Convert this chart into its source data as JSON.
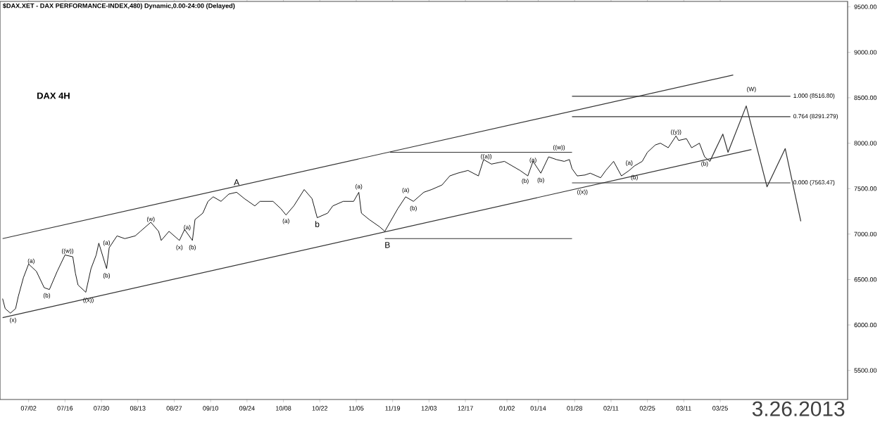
{
  "chart_data": {
    "type": "line",
    "title": "$DAX.XET - DAX PERFORMANCE-INDEX,480) Dynamic,0.00-24:00 (Delayed)",
    "xlim": [
      "2012-06-21",
      "2013-05-13"
    ],
    "xticks": [
      {
        "value": "2012-07-02",
        "label": "07/02"
      },
      {
        "value": "2012-07-16",
        "label": "07/16"
      },
      {
        "value": "2012-07-30",
        "label": "07/30"
      },
      {
        "value": "2012-08-13",
        "label": "08/13"
      },
      {
        "value": "2012-08-27",
        "label": "08/27"
      },
      {
        "value": "2012-09-10",
        "label": "09/10"
      },
      {
        "value": "2012-09-24",
        "label": "09/24"
      },
      {
        "value": "2012-10-08",
        "label": "10/08"
      },
      {
        "value": "2012-10-22",
        "label": "10/22"
      },
      {
        "value": "2012-11-05",
        "label": "11/05"
      },
      {
        "value": "2012-11-19",
        "label": "11/19"
      },
      {
        "value": "2012-12-03",
        "label": "12/03"
      },
      {
        "value": "2012-12-17",
        "label": "12/17"
      },
      {
        "value": "2013-01-02",
        "label": "01/02"
      },
      {
        "value": "2013-01-14",
        "label": "01/14"
      },
      {
        "value": "2013-01-28",
        "label": "01/28"
      },
      {
        "value": "2013-02-11",
        "label": "02/11"
      },
      {
        "value": "2013-02-25",
        "label": "02/25"
      },
      {
        "value": "2013-03-11",
        "label": "03/11"
      },
      {
        "value": "2013-03-25",
        "label": "03/25"
      }
    ],
    "ylim": [
      5180,
      9560
    ],
    "yticks": [
      {
        "value": 5500,
        "label": "5500.00"
      },
      {
        "value": 6000,
        "label": "6000.00"
      },
      {
        "value": 6500,
        "label": "6500.00"
      },
      {
        "value": 7000,
        "label": "7000.00"
      },
      {
        "value": 7500,
        "label": "7500.00"
      },
      {
        "value": 8000,
        "label": "8000.00"
      },
      {
        "value": 8500,
        "label": "8500.00"
      },
      {
        "value": 9000,
        "label": "9000.00"
      },
      {
        "value": 9500,
        "label": "9500.00"
      }
    ],
    "series": [
      {
        "color": "#000000",
        "x": [
          "2012-06-22",
          "2012-06-23",
          "2012-06-25",
          "2012-06-27",
          "2012-06-28",
          "2012-06-30",
          "2012-07-02",
          "2012-07-05",
          "2012-07-08",
          "2012-07-10",
          "2012-07-13",
          "2012-07-16",
          "2012-07-19",
          "2012-07-20",
          "2012-07-21",
          "2012-07-24",
          "2012-07-26",
          "2012-07-28",
          "2012-07-29",
          "2012-08-01",
          "2012-08-02",
          "2012-08-05",
          "2012-08-08",
          "2012-08-12",
          "2012-08-14",
          "2012-08-18",
          "2012-08-21",
          "2012-08-22",
          "2012-08-25",
          "2012-08-29",
          "2012-08-31",
          "2012-09-03",
          "2012-09-04",
          "2012-09-07",
          "2012-09-09",
          "2012-09-11",
          "2012-09-14",
          "2012-09-17",
          "2012-09-20",
          "2012-09-23",
          "2012-09-27",
          "2012-09-29",
          "2012-10-04",
          "2012-10-07",
          "2012-10-09",
          "2012-10-12",
          "2012-10-16",
          "2012-10-19",
          "2012-10-21",
          "2012-10-25",
          "2012-10-27",
          "2012-10-31",
          "2012-11-04",
          "2012-11-06",
          "2012-11-07",
          "2012-11-10",
          "2012-11-14",
          "2012-11-16",
          "2012-11-18",
          "2012-11-21",
          "2012-11-24",
          "2012-11-27",
          "2012-12-01",
          "2012-12-04",
          "2012-12-08",
          "2012-12-11",
          "2012-12-14",
          "2012-12-18",
          "2012-12-22",
          "2012-12-24",
          "2012-12-27",
          "2013-01-01",
          "2013-01-04",
          "2013-01-07",
          "2013-01-10",
          "2013-01-12",
          "2013-01-15",
          "2013-01-18",
          "2013-01-21",
          "2013-01-24",
          "2013-01-26",
          "2013-01-27",
          "2013-01-29",
          "2013-02-01",
          "2013-02-03",
          "2013-02-07",
          "2013-02-09",
          "2013-02-12",
          "2013-02-15",
          "2013-02-18",
          "2013-02-20",
          "2013-02-23",
          "2013-02-25",
          "2013-02-28",
          "2013-03-02",
          "2013-03-05",
          "2013-03-08",
          "2013-03-09",
          "2013-03-12",
          "2013-03-14",
          "2013-03-17",
          "2013-03-19",
          "2013-03-21"
        ],
        "values": [
          6290,
          6180,
          6130,
          6180,
          6310,
          6520,
          6670,
          6590,
          6410,
          6390,
          6590,
          6770,
          6750,
          6570,
          6440,
          6360,
          6620,
          6770,
          6900,
          6620,
          6850,
          6980,
          6950,
          6980,
          7030,
          7130,
          7030,
          6930,
          7030,
          6930,
          7050,
          6930,
          7160,
          7230,
          7360,
          7410,
          7360,
          7440,
          7460,
          7390,
          7310,
          7360,
          7360,
          7280,
          7210,
          7310,
          7490,
          7390,
          7180,
          7230,
          7310,
          7360,
          7360,
          7460,
          7230,
          7160,
          7080,
          7030,
          7130,
          7280,
          7410,
          7360,
          7460,
          7490,
          7540,
          7640,
          7670,
          7700,
          7640,
          7820,
          7770,
          7800,
          7750,
          7700,
          7640,
          7800,
          7670,
          7850,
          7820,
          7800,
          7820,
          7720,
          7640,
          7650,
          7670,
          7620,
          7700,
          7800,
          7640,
          7700,
          7750,
          7800,
          7900,
          7980,
          8000,
          7950,
          8080,
          8030,
          8050,
          7950,
          8000,
          7850,
          7800
        ]
      },
      {
        "color": "#333333",
        "x": [
          "2013-03-21",
          "2013-03-26",
          "2013-03-28",
          "2013-04-04",
          "2013-04-12",
          "2013-04-19",
          "2013-04-25"
        ],
        "values": [
          7800,
          8100,
          7900,
          8410,
          7520,
          7940,
          7140
        ]
      },
      {
        "color": "#333333",
        "x": [
          "2012-06-22",
          "2013-03-30"
        ],
        "values": [
          6950,
          8750
        ]
      },
      {
        "color": "#333333",
        "x": [
          "2012-06-22",
          "2013-04-06"
        ],
        "values": [
          6080,
          7930
        ]
      },
      {
        "color": "#333333",
        "x": [
          "2012-11-16",
          "2013-01-27"
        ],
        "values": [
          6950,
          6950
        ]
      },
      {
        "color": "#333333",
        "x": [
          "2012-11-18",
          "2013-01-27"
        ],
        "values": [
          7900,
          7900
        ]
      },
      {
        "name": "1.000 (8516.80)",
        "color": "#333333",
        "x": [
          "2013-01-27",
          "2013-04-21"
        ],
        "values": [
          8516.8,
          8516.8
        ]
      },
      {
        "name": "0.764 (8291.279)",
        "color": "#333333",
        "x": [
          "2013-01-27",
          "2013-04-21"
        ],
        "values": [
          8291.279,
          8291.279
        ]
      },
      {
        "name": "0.000 (7563.47)",
        "color": "#333333",
        "x": [
          "2013-01-27",
          "2013-04-21"
        ],
        "values": [
          7563.47,
          7563.47
        ]
      }
    ],
    "annotations": [
      "DAX 4H",
      "3.26.2013",
      {
        "text": "(W)",
        "x": "2013-04-06",
        "y": 8590
      },
      {
        "text": "(x)",
        "x": "2012-06-26",
        "y": 6050
      },
      {
        "text": "(a)",
        "x": "2012-07-03",
        "y": 6700
      },
      {
        "text": "(b)",
        "x": "2012-07-09",
        "y": 6320
      },
      {
        "text": "((w))",
        "x": "2012-07-17",
        "y": 6810
      },
      {
        "text": "((x))",
        "x": "2012-07-25",
        "y": 6270
      },
      {
        "text": "(a)",
        "x": "2012-08-01",
        "y": 6900
      },
      {
        "text": "(b)",
        "x": "2012-08-01",
        "y": 6540
      },
      {
        "text": "(w)",
        "x": "2012-08-18",
        "y": 7160
      },
      {
        "text": "(x)",
        "x": "2012-08-29",
        "y": 6850
      },
      {
        "text": "(a)",
        "x": "2012-09-01",
        "y": 7070
      },
      {
        "text": "(b)",
        "x": "2012-09-03",
        "y": 6850
      },
      {
        "text": "A",
        "x": "2012-09-20",
        "y": 7570
      },
      {
        "text": "(a)",
        "x": "2012-10-09",
        "y": 7140
      },
      {
        "text": "b",
        "x": "2012-10-21",
        "y": 7110
      },
      {
        "text": "(a)",
        "x": "2012-11-06",
        "y": 7520
      },
      {
        "text": "B",
        "x": "2012-11-17",
        "y": 6880
      },
      {
        "text": "(a)",
        "x": "2012-11-24",
        "y": 7480
      },
      {
        "text": "(b)",
        "x": "2012-11-27",
        "y": 7280
      },
      {
        "text": "((a))",
        "x": "2012-12-25",
        "y": 7850
      },
      {
        "text": "(b)",
        "x": "2013-01-09",
        "y": 7580
      },
      {
        "text": "(a)",
        "x": "2013-01-12",
        "y": 7810
      },
      {
        "text": "(b)",
        "x": "2013-01-15",
        "y": 7590
      },
      {
        "text": "((w))",
        "x": "2013-01-22",
        "y": 7950
      },
      {
        "text": "((x))",
        "x": "2013-01-31",
        "y": 7460
      },
      {
        "text": "(a)",
        "x": "2013-02-18",
        "y": 7780
      },
      {
        "text": "(b)",
        "x": "2013-02-20",
        "y": 7620
      },
      {
        "text": "((y))",
        "x": "2013-03-08",
        "y": 8120
      },
      {
        "text": "(b)",
        "x": "2013-03-19",
        "y": 7770
      }
    ]
  }
}
